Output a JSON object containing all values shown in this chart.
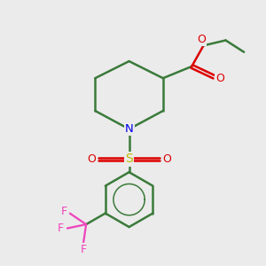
{
  "bg_color": "#ebebeb",
  "bond_color": "#3a7a3a",
  "N_color": "#0000ee",
  "O_color": "#dd0000",
  "S_color": "#bbbb00",
  "F_color": "#ee44bb",
  "lw": 1.8,
  "figsize": [
    3.0,
    3.0
  ],
  "dpi": 100,
  "xlim": [
    0,
    10
  ],
  "ylim": [
    0,
    10
  ]
}
